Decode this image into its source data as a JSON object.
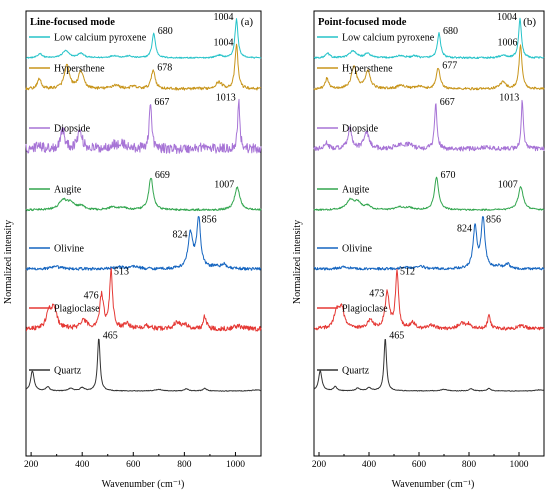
{
  "figure": {
    "ylabel": "Normalized intensity",
    "xlabel": "Wavenumber (cm⁻¹)"
  },
  "chart_data": [
    {
      "type": "line",
      "panel_label": "(a)",
      "title": "Line-focused mode",
      "xlabel": "Wavenumber (cm⁻¹)",
      "ylabel": "Normalized intensity",
      "xlim": [
        180,
        1100
      ],
      "x_ticks": [
        200,
        400,
        600,
        800,
        1000
      ],
      "legend_placement": "inline-left",
      "series": [
        {
          "name": "Low calcium pyroxene",
          "color": "#26c3c9",
          "labels": [
            {
              "x": 680,
              "text": "680"
            },
            {
              "x": 1004,
              "text": "1004"
            }
          ]
        },
        {
          "name": "Hypersthene",
          "color": "#c8951b",
          "labels": [
            {
              "x": 678,
              "text": "678"
            },
            {
              "x": 1004,
              "text": "1004"
            }
          ]
        },
        {
          "name": "Diopside",
          "color": "#a774d6",
          "labels": [
            {
              "x": 667,
              "text": "667"
            },
            {
              "x": 1013,
              "text": "1013"
            }
          ]
        },
        {
          "name": "Augite",
          "color": "#33a64f",
          "labels": [
            {
              "x": 669,
              "text": "669"
            },
            {
              "x": 1007,
              "text": "1007"
            }
          ]
        },
        {
          "name": "Olivine",
          "color": "#1565c0",
          "labels": [
            {
              "x": 824,
              "text": "824"
            },
            {
              "x": 856,
              "text": "856"
            }
          ]
        },
        {
          "name": "Plagioclase",
          "color": "#e53935",
          "labels": [
            {
              "x": 476,
              "text": "476"
            },
            {
              "x": 513,
              "text": "513"
            }
          ]
        },
        {
          "name": "Quartz",
          "color": "#333333",
          "labels": [
            {
              "x": 465,
              "text": "465"
            }
          ]
        }
      ]
    },
    {
      "type": "line",
      "panel_label": "(b)",
      "title": "Point-focused mode",
      "xlabel": "Wavenumber (cm⁻¹)",
      "ylabel": "Normalized intensity",
      "xlim": [
        180,
        1100
      ],
      "x_ticks": [
        200,
        400,
        600,
        800,
        1000
      ],
      "legend_placement": "inline-left",
      "series": [
        {
          "name": "Low calcium pyroxene",
          "color": "#26c3c9",
          "labels": [
            {
              "x": 680,
              "text": "680"
            },
            {
              "x": 1004,
              "text": "1004"
            }
          ]
        },
        {
          "name": "Hypersthene",
          "color": "#c8951b",
          "labels": [
            {
              "x": 677,
              "text": "677"
            },
            {
              "x": 1006,
              "text": "1006"
            }
          ]
        },
        {
          "name": "Diopside",
          "color": "#a774d6",
          "labels": [
            {
              "x": 667,
              "text": "667"
            },
            {
              "x": 1013,
              "text": "1013"
            }
          ]
        },
        {
          "name": "Augite",
          "color": "#33a64f",
          "labels": [
            {
              "x": 670,
              "text": "670"
            },
            {
              "x": 1007,
              "text": "1007"
            }
          ]
        },
        {
          "name": "Olivine",
          "color": "#1565c0",
          "labels": [
            {
              "x": 824,
              "text": "824"
            },
            {
              "x": 856,
              "text": "856"
            }
          ]
        },
        {
          "name": "Plagioclase",
          "color": "#e53935",
          "labels": [
            {
              "x": 473,
              "text": "473"
            },
            {
              "x": 512,
              "text": "512"
            }
          ]
        },
        {
          "name": "Quartz",
          "color": "#333333",
          "labels": [
            {
              "x": 465,
              "text": "465"
            }
          ]
        }
      ]
    }
  ]
}
